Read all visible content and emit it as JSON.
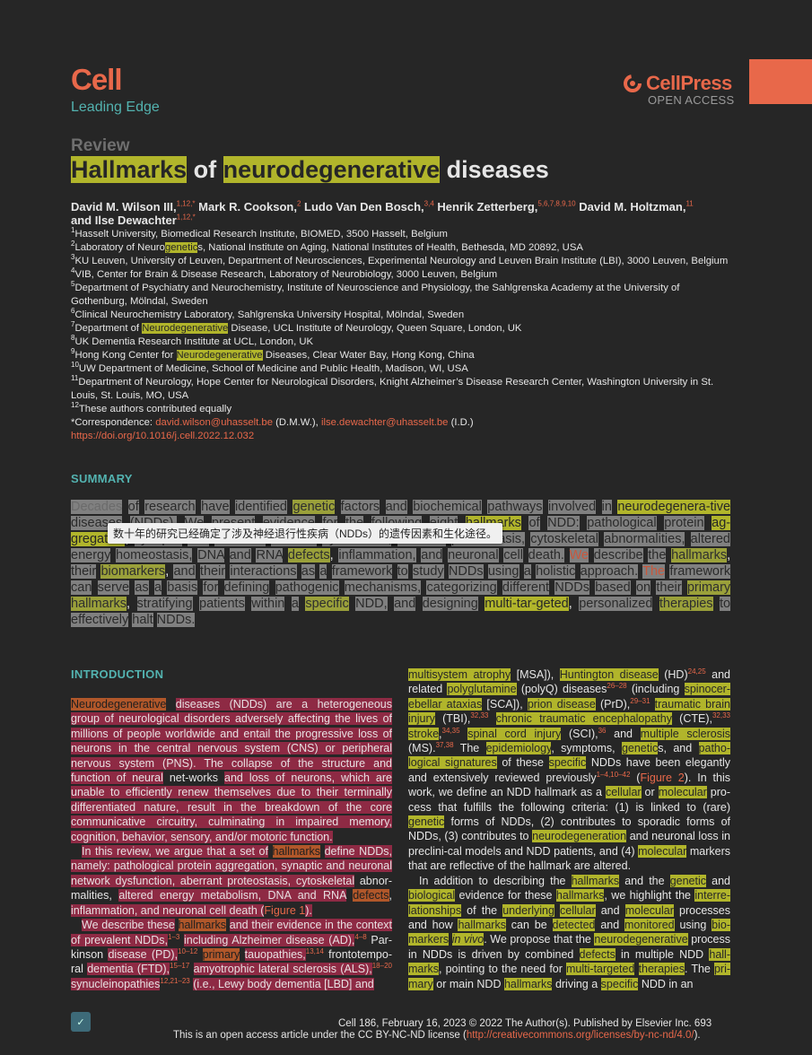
{
  "header": {
    "journal": "Cell",
    "section": "Leading Edge",
    "publisher": "CellPress",
    "access": "OPEN ACCESS"
  },
  "article": {
    "type": "Review",
    "title_parts": [
      "Hallmarks",
      " of ",
      "neurodegenerative",
      " diseases"
    ]
  },
  "authors_line1": "David M. Wilson III,",
  "authors_sup1": "1,12,*",
  "authors_line2": " Mark R. Cookson,",
  "authors_sup2": "2",
  "authors_line3": " Ludo Van Den Bosch,",
  "authors_sup3": "3,4",
  "authors_line4": " Henrik Zetterberg,",
  "authors_sup4": "5,6,7,8,9,10",
  "authors_line5": " David M. Holtzman,",
  "authors_sup5": "11",
  "authors_line6": "and Ilse Dewachter",
  "authors_sup6": "1,12,*",
  "affiliations": [
    "Hasselt University, Biomedical Research Institute, BIOMED, 3500 Hasselt, Belgium",
    "Laboratory of Neurogenetics, National Institute on Aging, National Institutes of Health, Bethesda, MD 20892, USA",
    "KU Leuven, University of Leuven, Department of Neurosciences, Experimental Neurology and Leuven Brain Institute (LBI), 3000 Leuven, Belgium",
    "VIB, Center for Brain & Disease Research, Laboratory of Neurobiology, 3000 Leuven, Belgium",
    "Department of Psychiatry and Neurochemistry, Institute of Neuroscience and Physiology, the Sahlgrenska Academy at the University of Gothenburg, Mölndal, Sweden",
    "Clinical Neurochemistry Laboratory, Sahlgrenska University Hospital, Mölndal, Sweden",
    "Department of Neurodegenerative Disease, UCL Institute of Neurology, Queen Square, London, UK",
    "UK Dementia Research Institute at UCL, London, UK",
    "Hong Kong Center for Neurodegenerative Diseases, Clear Water Bay, Hong Kong, China",
    "UW Department of Medicine, School of Medicine and Public Health, Madison, WI, USA",
    "Department of Neurology, Hope Center for Neurological Disorders, Knight Alzheimer’s Disease Research Center, Washington University in St. Louis, St. Louis, MO, USA",
    "These authors contributed equally"
  ],
  "correspondence": {
    "label": "*Correspondence: ",
    "email1": "david.wilson@uhasselt.be",
    "who1": " (D.M.W.), ",
    "email2": "ilse.dewachter@uhasselt.be",
    "who2": " (I.D.)",
    "doi": "https://doi.org/10.1016/j.cell.2022.12.032"
  },
  "summary": {
    "heading": "SUMMARY",
    "tooltip": "数十年的研究已经确定了涉及神经退行性疾病（NDDs）的遗传因素和生化途径。"
  },
  "intro": {
    "heading": "INTRODUCTION"
  },
  "footer": {
    "line1": "Cell 186, February 16, 2023 © 2022 The Author(s). Published by Elsevier Inc.   693",
    "line2_pre": "This is an open access article under the CC BY-NC-ND license (",
    "line2_link": "http://creativecommons.org/licenses/by-nc-nd/4.0/",
    "line2_post": ")."
  },
  "colors": {
    "accent": "#e8684a",
    "teal": "#53b3b0",
    "highlight_yellow": "#b1b52b",
    "highlight_red": "#8e2a44",
    "background": "#262626"
  }
}
